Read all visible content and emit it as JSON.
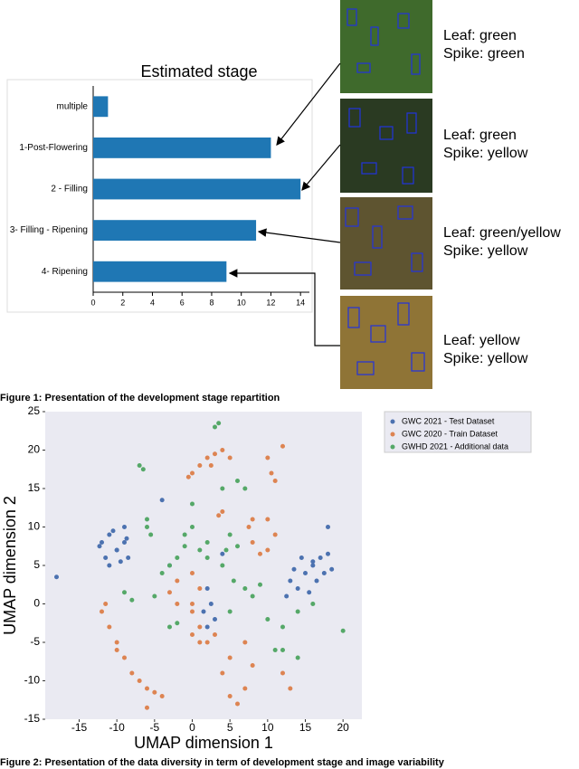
{
  "chart_data": [
    {
      "type": "bar",
      "orientation": "horizontal",
      "title": "Estimated stage",
      "categories": [
        "multiple",
        "1-Post-Flowering",
        "2 - Filling",
        "3- Filling - Ripening",
        "4- Ripening"
      ],
      "values": [
        1,
        12,
        14,
        11,
        9
      ],
      "color": "#1f77b4",
      "xlim": [
        0,
        14.6
      ],
      "xticks": [
        0,
        2,
        4,
        6,
        8,
        10,
        12,
        14
      ],
      "annotations": [
        {
          "leaf": "Leaf: green",
          "spike": "Spike: green"
        },
        {
          "leaf": "Leaf: green",
          "spike": "Spike: yellow"
        },
        {
          "leaf": "Leaf: green/yellow",
          "spike": "Spike: yellow"
        },
        {
          "leaf": "Leaf: yellow",
          "spike": "Spike: yellow"
        }
      ],
      "caption": "Figure 1: Presentation of the development stage repartition"
    },
    {
      "type": "scatter",
      "xlabel": "UMAP dimension 1",
      "ylabel": "UMAP dimension 2",
      "xlim": [
        -19.5,
        22.5
      ],
      "ylim": [
        -15,
        25
      ],
      "xticks": [
        -15,
        -10,
        -5,
        0,
        5,
        10,
        15,
        20
      ],
      "yticks": [
        -15,
        -10,
        -5,
        0,
        5,
        10,
        15,
        20,
        25
      ],
      "legend": "outside-top-right",
      "series": [
        {
          "name": "GWC 2021 - Test Dataset",
          "color": "#4c72b0",
          "x": [
            -12,
            -11,
            -10,
            -9,
            -8.5,
            -11.5,
            -10.5,
            -9.5,
            -10,
            -9,
            -11,
            -12.3,
            -8.7,
            13,
            14,
            15,
            16,
            17,
            18,
            12.5,
            13.5,
            15.5,
            16.5,
            17.5,
            14.5,
            16,
            18.5,
            2,
            2.5,
            1.5,
            3,
            2,
            -18,
            18,
            -4,
            4,
            -3
          ],
          "y": [
            8,
            9,
            7,
            8,
            6,
            6,
            9.5,
            5.5,
            7,
            10,
            5,
            7.5,
            8.5,
            3,
            2,
            4,
            5,
            6,
            6.5,
            1,
            4.5,
            1.5,
            3,
            4,
            6,
            5.5,
            4.5,
            2,
            0,
            -1,
            -2,
            -3,
            3.5,
            10,
            13.5,
            6.5,
            5
          ]
        },
        {
          "name": "GWC 2020 - Train Dataset",
          "color": "#dd8452",
          "x": [
            -12,
            -11,
            -10,
            -9,
            -8,
            -6,
            -4,
            -11.5,
            -10,
            -7,
            -5,
            0,
            1,
            2,
            3,
            4,
            5,
            -0.5,
            2.5,
            10,
            10.5,
            11,
            12,
            8,
            10,
            11,
            10,
            8,
            7.5,
            9,
            3.5,
            4,
            -2,
            0,
            1,
            0,
            -2,
            -3,
            0,
            1,
            0,
            1,
            3,
            2,
            5,
            7,
            8,
            7,
            5,
            4,
            6,
            12,
            13,
            -6
          ],
          "y": [
            -1,
            -3,
            -5,
            -7,
            -9,
            -11,
            -12,
            0,
            -6,
            -10,
            -11.5,
            17,
            18,
            19,
            19.5,
            20,
            19,
            16.5,
            18,
            19,
            17,
            16,
            20.5,
            11,
            11,
            9,
            7,
            8,
            10,
            6.5,
            11.5,
            12,
            3,
            4,
            2,
            0,
            0,
            1.5,
            -1,
            -3,
            -4,
            -5,
            -4,
            -5,
            -7,
            -5,
            -8,
            -11,
            -12,
            -9,
            -13,
            -9,
            -11,
            -13.5
          ]
        },
        {
          "name": "GWHD 2021 - Additional data",
          "color": "#55a868",
          "x": [
            -7,
            -6.5,
            -6,
            -5.5,
            -6,
            3,
            3.5,
            0,
            0,
            -4,
            -3,
            -2,
            1,
            2,
            2,
            4,
            4.5,
            5.5,
            6,
            5,
            7,
            8,
            10,
            12,
            14,
            16,
            12,
            14,
            11,
            9,
            -9,
            -8,
            -3,
            -2,
            4,
            6,
            7,
            -1,
            5,
            20,
            -1,
            -5
          ],
          "y": [
            18,
            17.5,
            11,
            9,
            10,
            23,
            23.5,
            13,
            10,
            4,
            5,
            6,
            7,
            8,
            6,
            5,
            7,
            3,
            7.5,
            9,
            2,
            1,
            -2,
            -3,
            -1,
            0,
            -6,
            -7,
            -6,
            2.5,
            1.5,
            0.5,
            -3,
            -2.5,
            15,
            16,
            15,
            7.5,
            -1,
            -3.5,
            9,
            1
          ]
        }
      ],
      "caption": "Figure 2: Presentation of the data diversity in term of development stage  and image variability"
    }
  ]
}
